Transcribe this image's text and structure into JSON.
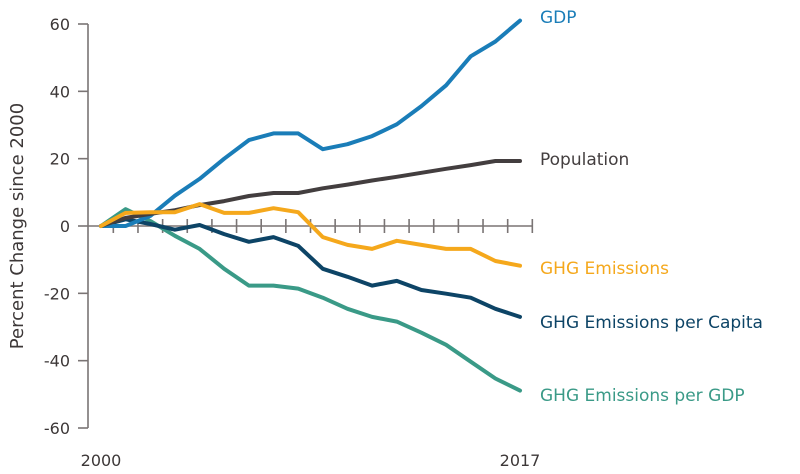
{
  "chart_data": {
    "type": "line",
    "title": "",
    "xlabel": "",
    "ylabel": "Percent Change since 2000",
    "x": [
      2000,
      2001,
      2002,
      2003,
      2004,
      2005,
      2006,
      2007,
      2008,
      2009,
      2010,
      2011,
      2012,
      2013,
      2014,
      2015,
      2016,
      2017
    ],
    "x_tick_labels": [
      "2000",
      "2017"
    ],
    "y_ticks": [
      60,
      40,
      20,
      0,
      -20,
      -40,
      -60
    ],
    "y_tick_labels": [
      "60",
      "40",
      "20",
      "0",
      "-20",
      "-40",
      "-60"
    ],
    "ylim": [
      -60,
      60
    ],
    "xlim": [
      2000,
      2017
    ],
    "grid": false,
    "legend": "direct labels at right end of lines",
    "series": [
      {
        "name": "GDP",
        "color": "#1a7db8",
        "values": [
          0,
          0,
          3,
          9,
          14,
          20,
          25.5,
          27.5,
          27.5,
          22.8,
          24.3,
          26.7,
          30.2,
          35.6,
          41.8,
          50.4,
          54.8,
          61
        ]
      },
      {
        "name": "Population",
        "color": "#433e3f",
        "values": [
          0,
          2.4,
          3.6,
          4.7,
          6.2,
          7.4,
          8.9,
          9.8,
          9.8,
          11.2,
          12.3,
          13.5,
          14.6,
          15.8,
          17.0,
          18.1,
          19.3,
          19.3
        ]
      },
      {
        "name": "GHG Emissions",
        "color": "#f5a81c",
        "values": [
          0,
          3.9,
          4.1,
          4.1,
          6.5,
          3.9,
          3.9,
          5.3,
          4.1,
          -3.3,
          -5.6,
          -6.8,
          -4.4,
          -5.6,
          -6.8,
          -6.8,
          -10.4,
          -11.8
        ]
      },
      {
        "name": "GHG Emissions per Capita",
        "color": "#0d4466",
        "values": [
          0,
          2.0,
          0.6,
          -1.1,
          0.3,
          -2.4,
          -4.7,
          -3.3,
          -5.9,
          -12.7,
          -15.1,
          -17.7,
          -16.3,
          -19.0,
          -20.1,
          -21.3,
          -24.6,
          -27.0
        ]
      },
      {
        "name": "GHG Emissions per GDP",
        "color": "#3a9a87",
        "values": [
          0,
          5,
          1.5,
          -2.9,
          -6.8,
          -12.7,
          -17.7,
          -17.7,
          -18.6,
          -21.3,
          -24.6,
          -27.0,
          -28.4,
          -31.7,
          -35.3,
          -40.3,
          -45.3,
          -48.9
        ]
      }
    ]
  }
}
